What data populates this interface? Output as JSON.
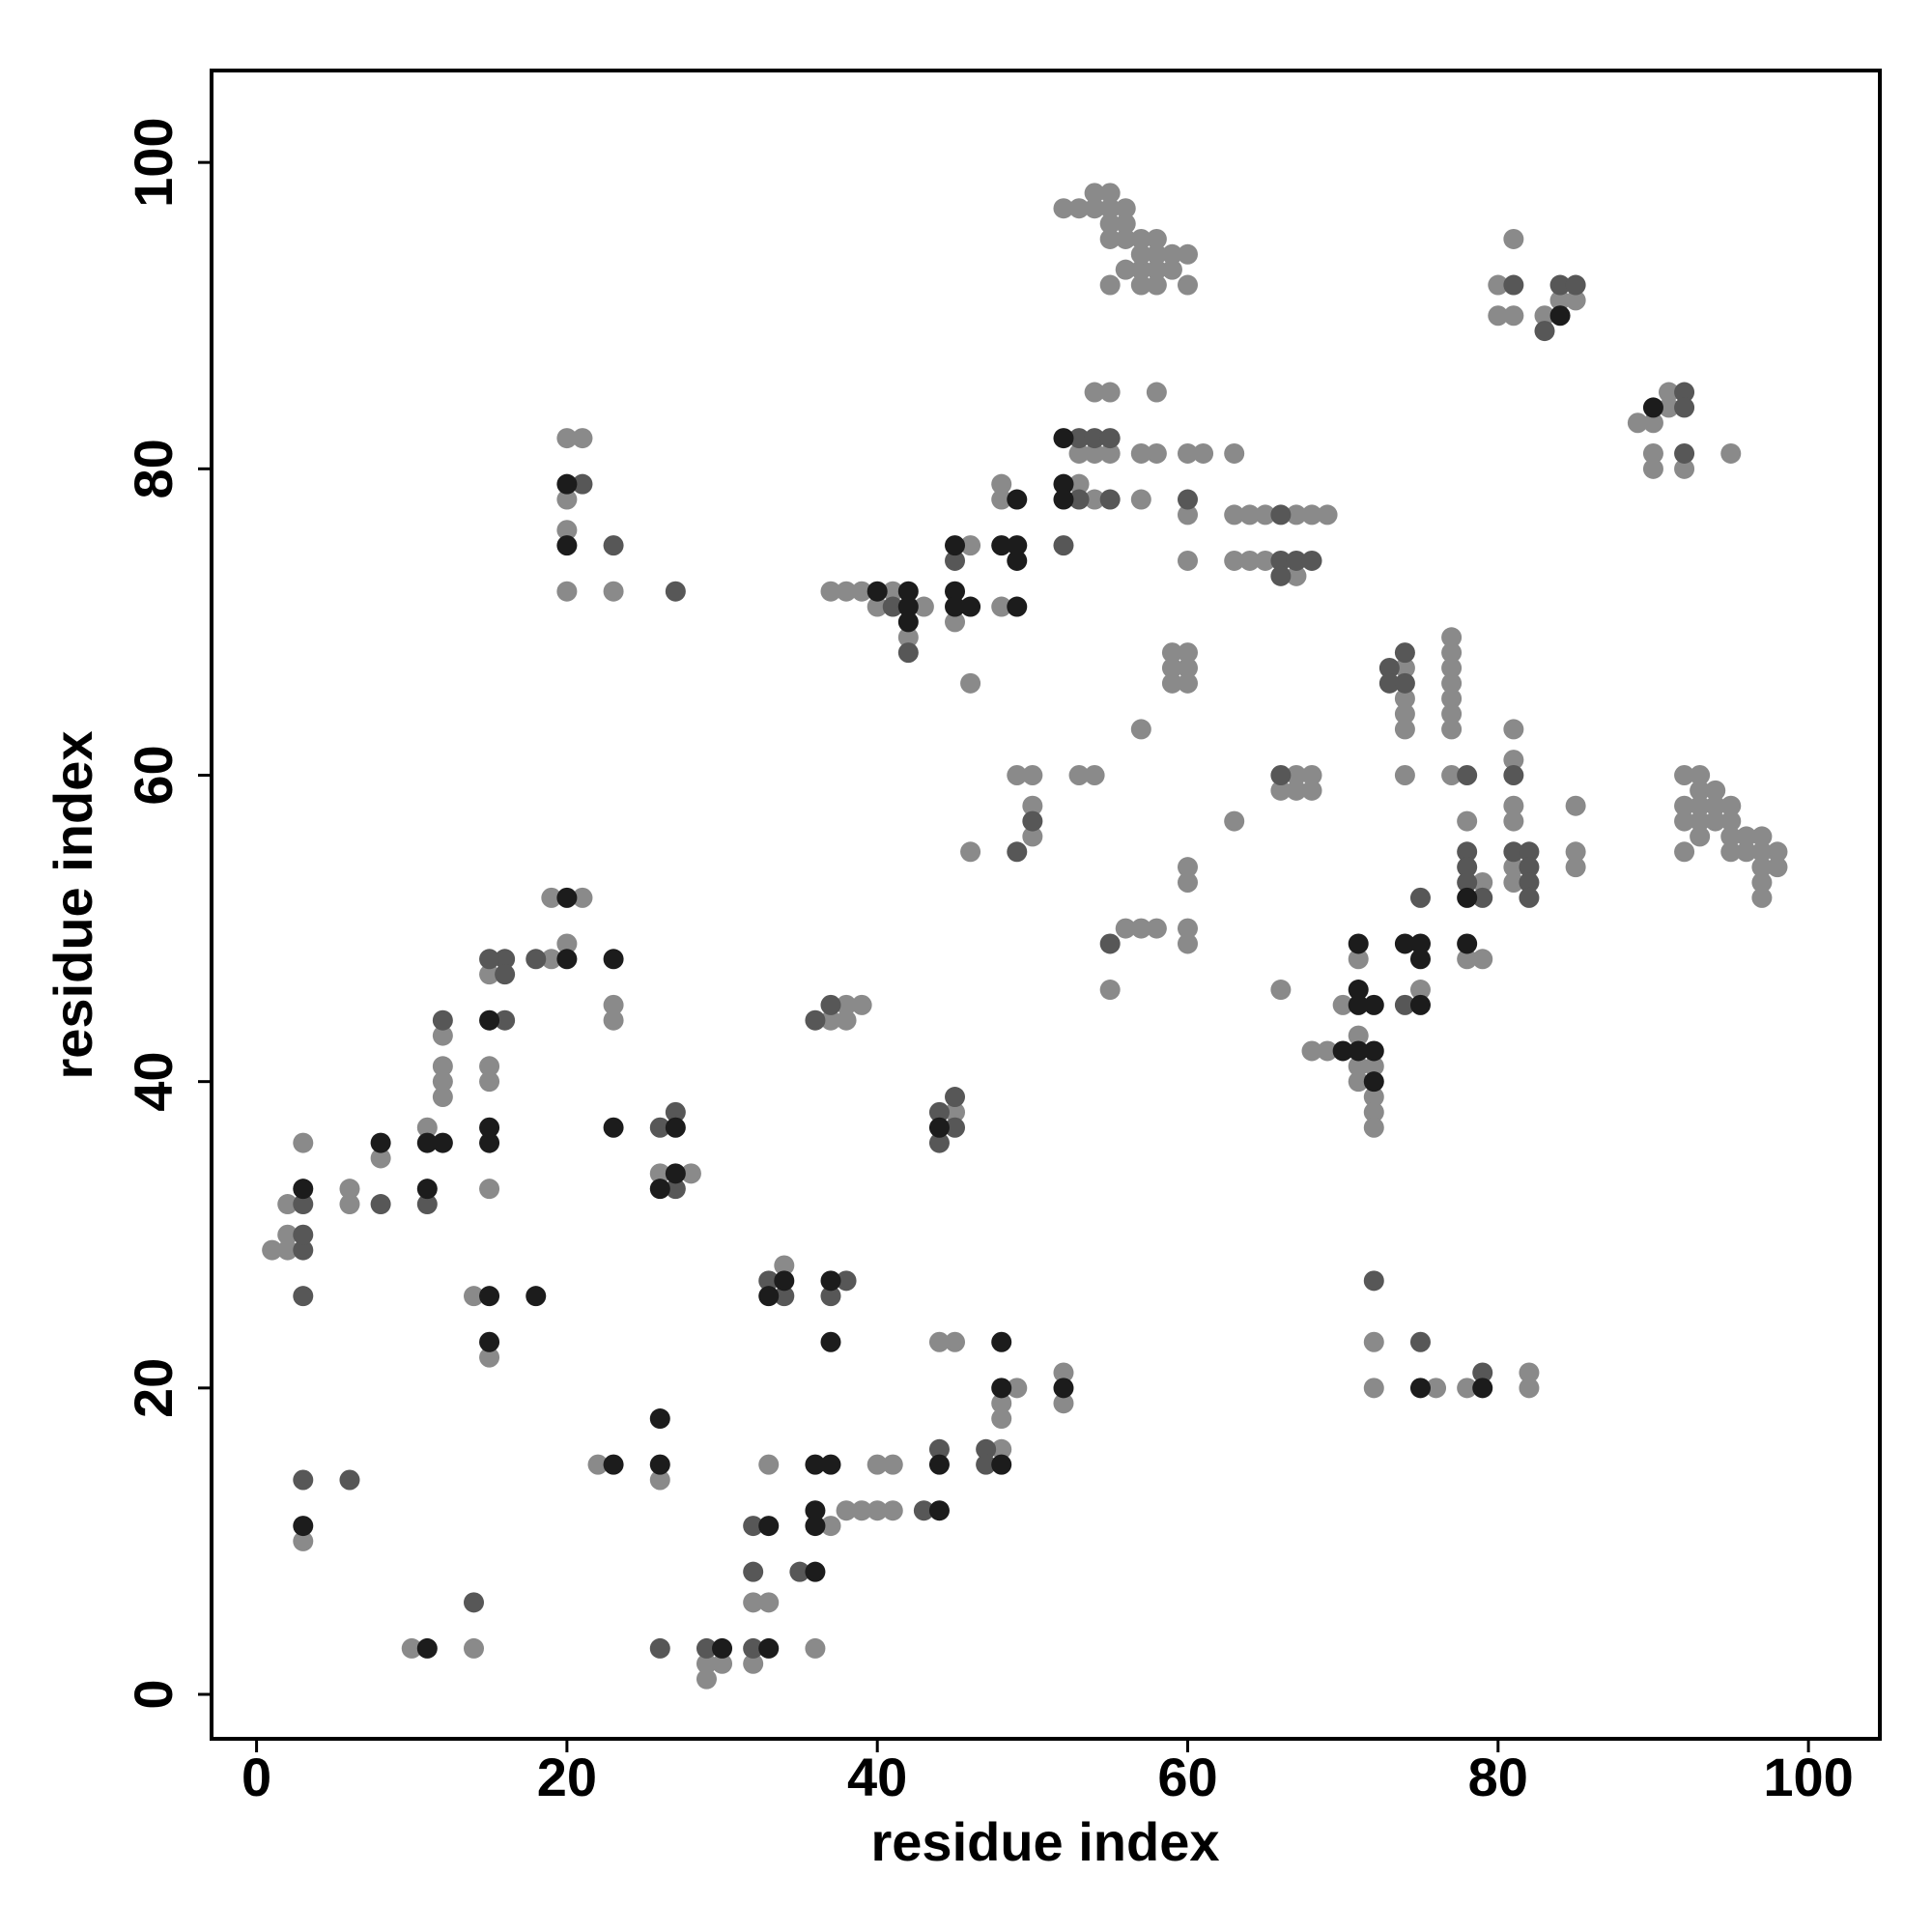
{
  "chart_data": {
    "type": "scatter",
    "x_label": "residue index",
    "y_label": "residue index",
    "xlim": [
      -2.9,
      104.6
    ],
    "ylim": [
      -2.9,
      106
    ],
    "xticks": [
      0,
      20,
      40,
      60,
      80,
      100
    ],
    "yticks": [
      0,
      20,
      40,
      60,
      80,
      100
    ],
    "grid": false,
    "series": [
      {
        "color": "#8a8a8a",
        "x": [
          1,
          2,
          2,
          2,
          3,
          6,
          6,
          8,
          11,
          12,
          12,
          12,
          12,
          14,
          15,
          15,
          15,
          15,
          15,
          19,
          19,
          21,
          20,
          23,
          23,
          20,
          21,
          20,
          20,
          20,
          23,
          26,
          28,
          3,
          10,
          14,
          22,
          26,
          29,
          29,
          30,
          32,
          32,
          33,
          33,
          34,
          37,
          36,
          38,
          39,
          40,
          40,
          41,
          41,
          44,
          45,
          48,
          48,
          48,
          49,
          52,
          52,
          37,
          38,
          38,
          39,
          45,
          46,
          49,
          50,
          50,
          50,
          37,
          38,
          39,
          40,
          41,
          42,
          43,
          46,
          45,
          46,
          48,
          48,
          48,
          53,
          54,
          55,
          54,
          55,
          53,
          54,
          53,
          52,
          54,
          54,
          55,
          55,
          56,
          55,
          56,
          55,
          56,
          55,
          56,
          57,
          57,
          58,
          57,
          58,
          57,
          58,
          58,
          59,
          59,
          60,
          60,
          58,
          57,
          58,
          57,
          60,
          61,
          60,
          60,
          63,
          63,
          64,
          65,
          67,
          68,
          69,
          63,
          64,
          65,
          67,
          59,
          60,
          59,
          60,
          59,
          60,
          57,
          53,
          54,
          63,
          60,
          60,
          56,
          57,
          58,
          60,
          60,
          55,
          67,
          68,
          66,
          67,
          68,
          66,
          68,
          69,
          70,
          71,
          71,
          71,
          72,
          71,
          72,
          72,
          72,
          74,
          74,
          74,
          74,
          74,
          75,
          77,
          77,
          77,
          77,
          77,
          77,
          77,
          77,
          78,
          79,
          78,
          79,
          81,
          81,
          81,
          81,
          81,
          81,
          85,
          85,
          85,
          72,
          72,
          76,
          78,
          82,
          82,
          80,
          81,
          80,
          81,
          83,
          84,
          85,
          89,
          90,
          91,
          91,
          90,
          90,
          92,
          95,
          92,
          93,
          93,
          94,
          92,
          93,
          94,
          95,
          92,
          93,
          94,
          95,
          92,
          93,
          95,
          95,
          96,
          96,
          97,
          97,
          98,
          97,
          98,
          97,
          97
        ],
        "values": [
          29,
          29,
          30,
          32,
          36,
          33,
          32,
          35,
          37,
          39,
          40,
          41,
          43,
          26,
          33,
          40,
          41,
          47,
          22,
          48,
          52,
          52,
          49,
          45,
          44,
          82,
          82,
          78,
          76,
          72,
          72,
          34,
          34,
          10,
          3,
          3,
          15,
          14,
          2,
          1,
          2,
          2,
          6,
          6,
          15,
          28,
          11,
          3,
          12,
          12,
          12,
          15,
          15,
          12,
          23,
          23,
          16,
          18,
          19,
          20,
          21,
          19,
          44,
          45,
          44,
          45,
          38,
          55,
          60,
          60,
          58,
          56,
          72,
          72,
          72,
          71,
          72,
          69,
          71,
          75,
          70,
          66,
          79,
          78,
          71,
          81,
          81,
          81,
          85,
          85,
          79,
          78,
          97,
          97,
          97,
          98,
          98,
          97,
          97,
          96,
          96,
          95,
          95,
          92,
          93,
          93,
          95,
          95,
          94,
          94,
          92,
          92,
          93,
          93,
          94,
          94,
          92,
          85,
          81,
          81,
          78,
          81,
          81,
          77,
          74,
          81,
          77,
          77,
          77,
          77,
          77,
          77,
          74,
          74,
          74,
          73,
          68,
          68,
          67,
          67,
          66,
          66,
          63,
          60,
          60,
          57,
          54,
          53,
          50,
          50,
          50,
          50,
          49,
          46,
          60,
          60,
          59,
          59,
          59,
          46,
          42,
          42,
          45,
          48,
          43,
          41,
          41,
          40,
          39,
          38,
          37,
          67,
          65,
          64,
          63,
          60,
          46,
          69,
          68,
          67,
          66,
          65,
          64,
          63,
          60,
          57,
          53,
          48,
          48,
          63,
          61,
          58,
          57,
          54,
          53,
          58,
          55,
          54,
          23,
          20,
          20,
          20,
          21,
          20,
          92,
          95,
          90,
          90,
          90,
          91,
          91,
          83,
          83,
          85,
          84,
          81,
          80,
          80,
          81,
          60,
          60,
          59,
          59,
          58,
          58,
          58,
          58,
          57,
          57,
          57,
          57,
          55,
          56,
          56,
          55,
          56,
          55,
          56,
          55,
          55,
          54,
          54,
          53,
          52
        ]
      },
      {
        "color": "#575757",
        "x": [
          3,
          3,
          3,
          3,
          8,
          11,
          12,
          16,
          15,
          16,
          16,
          18,
          21,
          23,
          27,
          26,
          27,
          27,
          3,
          6,
          14,
          26,
          29,
          32,
          32,
          32,
          33,
          34,
          38,
          37,
          35,
          43,
          44,
          47,
          47,
          36,
          37,
          44,
          44,
          45,
          45,
          49,
          50,
          41,
          42,
          45,
          53,
          54,
          55,
          53,
          55,
          52,
          60,
          66,
          66,
          67,
          68,
          66,
          55,
          66,
          73,
          73,
          74,
          74,
          74,
          75,
          78,
          78,
          78,
          78,
          79,
          81,
          81,
          82,
          82,
          82,
          82,
          72,
          75,
          79,
          81,
          83,
          84,
          85,
          92,
          92,
          92
        ],
        "values": [
          29,
          30,
          32,
          26,
          32,
          32,
          44,
          48,
          48,
          47,
          44,
          48,
          79,
          75,
          72,
          37,
          38,
          33,
          14,
          14,
          6,
          3,
          3,
          3,
          8,
          11,
          27,
          26,
          27,
          26,
          8,
          12,
          16,
          16,
          15,
          44,
          45,
          36,
          38,
          37,
          39,
          55,
          57,
          71,
          68,
          74,
          82,
          82,
          82,
          78,
          78,
          75,
          78,
          77,
          74,
          74,
          74,
          73,
          49,
          60,
          67,
          66,
          66,
          68,
          45,
          52,
          60,
          55,
          54,
          53,
          52,
          60,
          55,
          55,
          54,
          53,
          52,
          27,
          23,
          21,
          92,
          89,
          92,
          92,
          85,
          84,
          81
        ]
      },
      {
        "color": "#1c1c1c",
        "x": [
          3,
          8,
          11,
          11,
          12,
          15,
          15,
          15,
          15,
          15,
          18,
          20,
          20,
          23,
          23,
          20,
          20,
          27,
          27,
          26,
          3,
          11,
          23,
          26,
          26,
          30,
          33,
          33,
          33,
          34,
          37,
          37,
          36,
          37,
          36,
          36,
          36,
          44,
          44,
          48,
          48,
          48,
          52,
          44,
          40,
          42,
          42,
          42,
          45,
          45,
          45,
          46,
          49,
          48,
          49,
          49,
          49,
          52,
          52,
          52,
          70,
          71,
          71,
          72,
          71,
          71,
          72,
          72,
          74,
          75,
          75,
          75,
          78,
          78,
          75,
          79,
          84,
          90
        ],
        "values": [
          33,
          36,
          36,
          33,
          36,
          26,
          36,
          37,
          44,
          23,
          26,
          52,
          48,
          48,
          37,
          79,
          75,
          37,
          34,
          33,
          11,
          3,
          15,
          18,
          15,
          3,
          3,
          11,
          26,
          27,
          27,
          23,
          15,
          15,
          12,
          11,
          8,
          12,
          15,
          15,
          20,
          23,
          20,
          37,
          72,
          72,
          71,
          70,
          75,
          72,
          71,
          71,
          78,
          75,
          75,
          74,
          71,
          82,
          79,
          78,
          42,
          46,
          45,
          45,
          49,
          42,
          42,
          40,
          49,
          49,
          48,
          45,
          52,
          49,
          20,
          20,
          90,
          84
        ]
      }
    ]
  }
}
